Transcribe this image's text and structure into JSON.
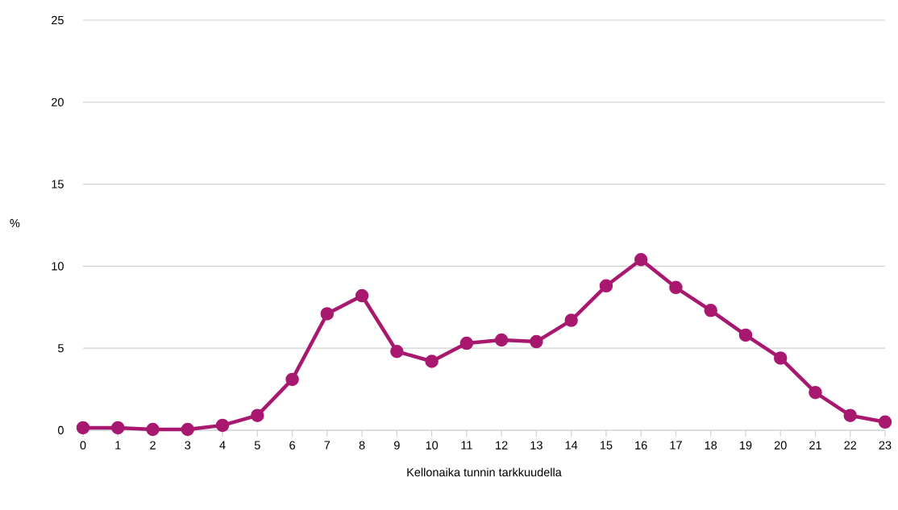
{
  "chart_data": {
    "type": "line",
    "xlabel": "Kellonaika tunnin tarkkuudella",
    "ylabel": "%",
    "categories": [
      "0",
      "1",
      "2",
      "3",
      "4",
      "5",
      "6",
      "7",
      "8",
      "9",
      "10",
      "11",
      "12",
      "13",
      "14",
      "15",
      "16",
      "17",
      "18",
      "19",
      "20",
      "21",
      "22",
      "23"
    ],
    "series": [
      {
        "color": "#a8186f",
        "values": [
          0.15,
          0.15,
          0.05,
          0.05,
          0.3,
          0.9,
          3.1,
          7.1,
          8.2,
          4.8,
          4.2,
          5.3,
          5.5,
          5.4,
          6.7,
          8.8,
          10.4,
          8.7,
          7.3,
          5.8,
          4.4,
          2.3,
          0.9,
          0.5
        ]
      }
    ],
    "ylim": [
      0,
      25
    ],
    "yticks": [
      0,
      5,
      10,
      15,
      20,
      25
    ],
    "grid": "y",
    "marker": "circle",
    "line_style": "solid"
  }
}
